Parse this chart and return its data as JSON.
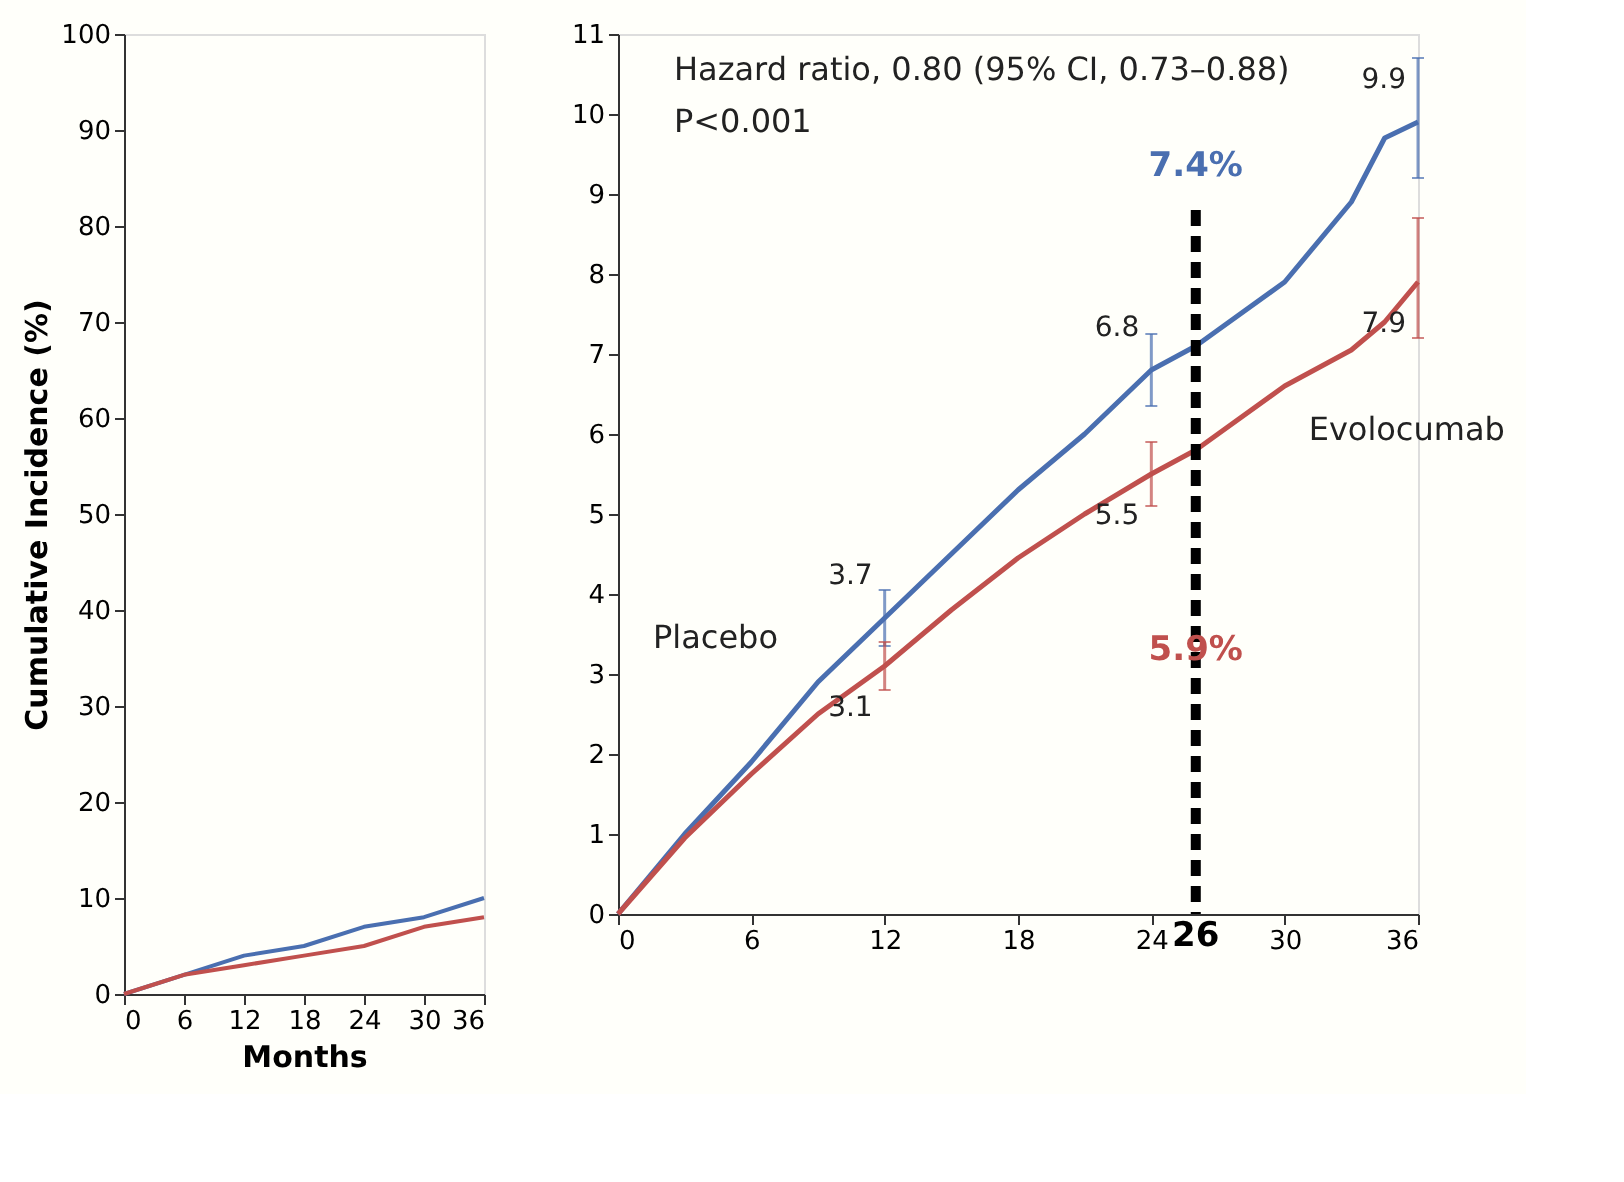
{
  "chart_data": [
    {
      "type": "line",
      "xlabel": "Months",
      "ylabel": "Cumulative Incidence (%)",
      "xlim": [
        0,
        36
      ],
      "xticks": [
        0,
        6,
        12,
        18,
        24,
        30,
        36
      ],
      "ylim": [
        0,
        100
      ],
      "yticks": [
        0,
        10,
        20,
        30,
        40,
        50,
        60,
        70,
        80,
        90,
        100
      ],
      "grid": false,
      "legend": false,
      "x": [
        0,
        6,
        12,
        18,
        24,
        30,
        36
      ],
      "series": [
        {
          "color": "#4a6fb0",
          "values": [
            0,
            2,
            4,
            5,
            7,
            8,
            10
          ]
        },
        {
          "color": "#c0504d",
          "values": [
            0,
            2,
            3,
            4,
            5,
            7,
            8
          ]
        }
      ]
    },
    {
      "type": "line",
      "xlim": [
        0,
        36
      ],
      "xticks": [
        0,
        6,
        12,
        18,
        24,
        30,
        36
      ],
      "ylim": [
        0,
        11
      ],
      "yticks": [
        0,
        1,
        2,
        3,
        4,
        5,
        6,
        7,
        8,
        9,
        10,
        11
      ],
      "grid": false,
      "legend": false,
      "x": [
        0,
        3,
        6,
        9,
        12,
        15,
        18,
        21,
        24,
        26,
        27,
        30,
        33,
        34.5,
        36
      ],
      "series": [
        {
          "name": "Placebo",
          "color": "#4a6fb0",
          "values": [
            0,
            1.0,
            1.9,
            2.9,
            3.7,
            4.5,
            5.3,
            6.0,
            6.8,
            7.1,
            7.3,
            7.9,
            8.9,
            9.7,
            9.9
          ],
          "errors": [
            null,
            null,
            null,
            null,
            0.35,
            null,
            null,
            null,
            0.45,
            null,
            null,
            null,
            null,
            null,
            [
              9.2,
              10.7
            ]
          ],
          "value_labels": [
            null,
            null,
            null,
            null,
            "3.7",
            null,
            null,
            null,
            "6.8",
            null,
            null,
            null,
            null,
            null,
            "9.9"
          ]
        },
        {
          "name": "Evolocumab",
          "color": "#c0504d",
          "values": [
            0,
            0.95,
            1.75,
            2.5,
            3.1,
            3.8,
            4.45,
            5.0,
            5.5,
            5.8,
            6.0,
            6.6,
            7.05,
            7.4,
            7.9
          ],
          "errors": [
            null,
            null,
            null,
            null,
            0.3,
            null,
            null,
            null,
            0.4,
            null,
            null,
            null,
            null,
            null,
            [
              7.2,
              8.7
            ]
          ],
          "value_labels": [
            null,
            null,
            null,
            null,
            "3.1",
            null,
            null,
            null,
            "5.5",
            null,
            null,
            null,
            null,
            null,
            "7.9"
          ]
        }
      ],
      "ref_lines": [
        {
          "axis": "x",
          "value": 26,
          "label": "26",
          "color": "#000000",
          "line_style": "dashed"
        }
      ],
      "annotations": [
        "Hazard ratio, 0.80 (95% CI, 0.73–0.88)",
        "P<0.001",
        "7.4%",
        "5.9%"
      ]
    }
  ]
}
